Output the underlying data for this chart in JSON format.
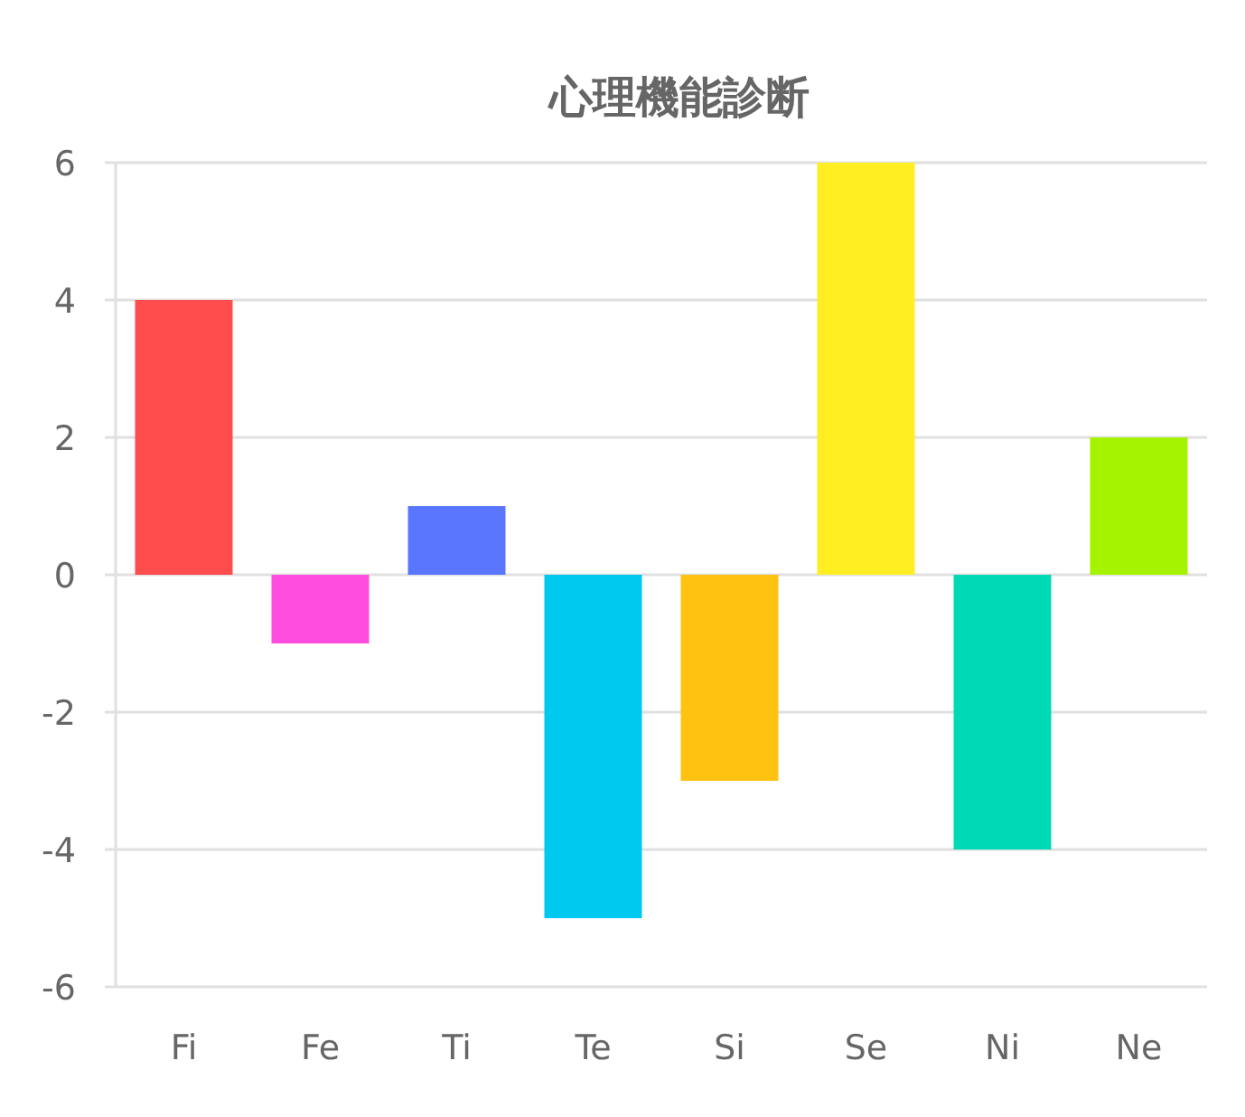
{
  "chart_data": {
    "type": "bar",
    "title": "心理機能診断",
    "categories": [
      "Fi",
      "Fe",
      "Ti",
      "Te",
      "Si",
      "Se",
      "Ni",
      "Ne"
    ],
    "values": [
      4,
      -1,
      1,
      -5,
      -3,
      6,
      -4,
      2
    ],
    "colors": [
      "#ff4d4d",
      "#ff4ddf",
      "#5a76ff",
      "#00c9f0",
      "#ffc211",
      "#ffee22",
      "#00d9b5",
      "#a6f300"
    ],
    "ylim": [
      -6,
      6
    ],
    "yticks": [
      -6,
      -4,
      -2,
      0,
      2,
      4,
      6
    ],
    "grid": "y"
  }
}
